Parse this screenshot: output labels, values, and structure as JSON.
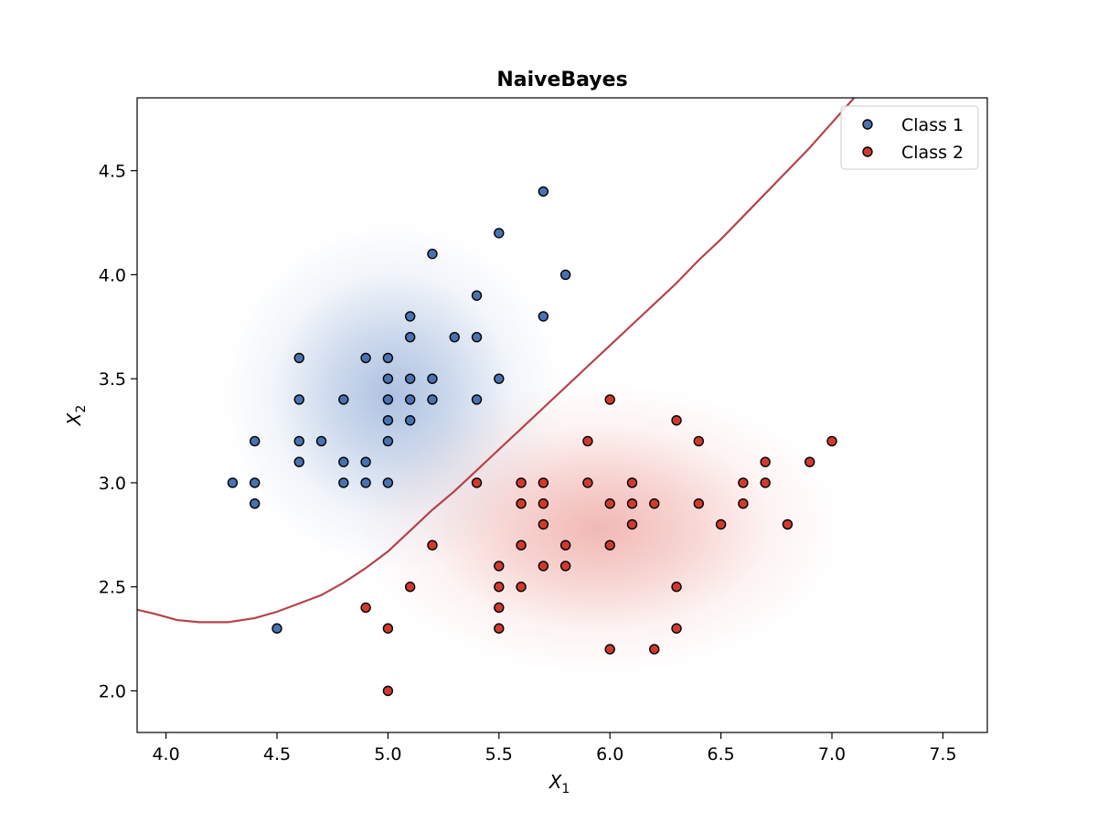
{
  "chart_data": {
    "type": "scatter",
    "title": "NaiveBayes",
    "xlabel": "X",
    "xlabel_sub": "1",
    "ylabel": "X",
    "ylabel_sub": "2",
    "xlim": [
      3.87,
      7.7
    ],
    "ylim": [
      1.8,
      4.85
    ],
    "xticks": [
      4.0,
      4.5,
      5.0,
      5.5,
      6.0,
      6.5,
      7.0,
      7.5
    ],
    "xtick_labels": [
      "4.0",
      "4.5",
      "5.0",
      "5.5",
      "6.0",
      "6.5",
      "7.0",
      "7.5"
    ],
    "yticks": [
      2.0,
      2.5,
      3.0,
      3.5,
      4.0,
      4.5
    ],
    "ytick_labels": [
      "2.0",
      "2.5",
      "3.0",
      "3.5",
      "4.0",
      "4.5"
    ],
    "grid": false,
    "legend_position": "top-right",
    "series": [
      {
        "name": "Class 1",
        "color": "#4a72b0",
        "points": [
          [
            5.7,
            4.4
          ],
          [
            5.5,
            4.2
          ],
          [
            5.2,
            4.1
          ],
          [
            5.8,
            4.0
          ],
          [
            5.4,
            3.9
          ],
          [
            5.1,
            3.8
          ],
          [
            5.7,
            3.8
          ],
          [
            5.1,
            3.7
          ],
          [
            5.3,
            3.7
          ],
          [
            5.4,
            3.7
          ],
          [
            4.6,
            3.6
          ],
          [
            4.9,
            3.6
          ],
          [
            5.0,
            3.6
          ],
          [
            5.0,
            3.5
          ],
          [
            5.1,
            3.5
          ],
          [
            5.2,
            3.5
          ],
          [
            5.5,
            3.5
          ],
          [
            4.6,
            3.4
          ],
          [
            4.8,
            3.4
          ],
          [
            5.0,
            3.4
          ],
          [
            5.1,
            3.4
          ],
          [
            5.2,
            3.4
          ],
          [
            5.4,
            3.4
          ],
          [
            5.0,
            3.3
          ],
          [
            5.1,
            3.3
          ],
          [
            4.4,
            3.2
          ],
          [
            4.6,
            3.2
          ],
          [
            4.7,
            3.2
          ],
          [
            5.0,
            3.2
          ],
          [
            4.6,
            3.1
          ],
          [
            4.8,
            3.1
          ],
          [
            4.9,
            3.1
          ],
          [
            4.3,
            3.0
          ],
          [
            4.4,
            3.0
          ],
          [
            4.8,
            3.0
          ],
          [
            4.9,
            3.0
          ],
          [
            5.0,
            3.0
          ],
          [
            4.4,
            2.9
          ],
          [
            4.5,
            2.3
          ]
        ]
      },
      {
        "name": "Class 2",
        "color": "#d03a2e",
        "points": [
          [
            6.0,
            3.4
          ],
          [
            6.3,
            3.3
          ],
          [
            5.9,
            3.2
          ],
          [
            6.4,
            3.2
          ],
          [
            7.0,
            3.2
          ],
          [
            6.7,
            3.1
          ],
          [
            6.9,
            3.1
          ],
          [
            5.4,
            3.0
          ],
          [
            5.6,
            3.0
          ],
          [
            5.7,
            3.0
          ],
          [
            5.9,
            3.0
          ],
          [
            6.1,
            3.0
          ],
          [
            6.6,
            3.0
          ],
          [
            6.7,
            3.0
          ],
          [
            5.6,
            2.9
          ],
          [
            5.7,
            2.9
          ],
          [
            6.0,
            2.9
          ],
          [
            6.1,
            2.9
          ],
          [
            6.2,
            2.9
          ],
          [
            6.4,
            2.9
          ],
          [
            6.6,
            2.9
          ],
          [
            5.7,
            2.8
          ],
          [
            6.1,
            2.8
          ],
          [
            6.5,
            2.8
          ],
          [
            6.8,
            2.8
          ],
          [
            5.2,
            2.7
          ],
          [
            5.6,
            2.7
          ],
          [
            5.8,
            2.7
          ],
          [
            6.0,
            2.7
          ],
          [
            5.5,
            2.6
          ],
          [
            5.7,
            2.6
          ],
          [
            5.8,
            2.6
          ],
          [
            5.1,
            2.5
          ],
          [
            5.5,
            2.5
          ],
          [
            5.6,
            2.5
          ],
          [
            6.3,
            2.5
          ],
          [
            4.9,
            2.4
          ],
          [
            5.5,
            2.4
          ],
          [
            5.0,
            2.3
          ],
          [
            5.5,
            2.3
          ],
          [
            6.3,
            2.3
          ],
          [
            6.0,
            2.2
          ],
          [
            6.2,
            2.2
          ],
          [
            5.0,
            2.0
          ]
        ]
      }
    ],
    "density": [
      {
        "class": "Class 1",
        "center": [
          5.02,
          3.42
        ],
        "spread": [
          0.35,
          0.38
        ],
        "color": "#8eaad6"
      },
      {
        "class": "Class 2",
        "center": [
          5.95,
          2.78
        ],
        "spread": [
          0.5,
          0.32
        ],
        "color": "#ec9d97"
      }
    ],
    "decision_boundary": {
      "color": "#b5434a",
      "points": [
        [
          3.87,
          2.39
        ],
        [
          3.95,
          2.37
        ],
        [
          4.05,
          2.34
        ],
        [
          4.15,
          2.33
        ],
        [
          4.28,
          2.33
        ],
        [
          4.4,
          2.35
        ],
        [
          4.5,
          2.38
        ],
        [
          4.6,
          2.42
        ],
        [
          4.7,
          2.46
        ],
        [
          4.8,
          2.52
        ],
        [
          4.9,
          2.59
        ],
        [
          5.0,
          2.67
        ],
        [
          5.1,
          2.77
        ],
        [
          5.2,
          2.87
        ],
        [
          5.3,
          2.96
        ],
        [
          5.4,
          3.06
        ],
        [
          5.5,
          3.16
        ],
        [
          5.6,
          3.26
        ],
        [
          5.7,
          3.36
        ],
        [
          5.8,
          3.46
        ],
        [
          5.9,
          3.56
        ],
        [
          6.0,
          3.66
        ],
        [
          6.1,
          3.76
        ],
        [
          6.2,
          3.86
        ],
        [
          6.3,
          3.96
        ],
        [
          6.4,
          4.07
        ],
        [
          6.5,
          4.17
        ],
        [
          6.6,
          4.28
        ],
        [
          6.7,
          4.39
        ],
        [
          6.8,
          4.5
        ],
        [
          6.9,
          4.61
        ],
        [
          7.0,
          4.73
        ],
        [
          7.1,
          4.85
        ]
      ]
    }
  }
}
